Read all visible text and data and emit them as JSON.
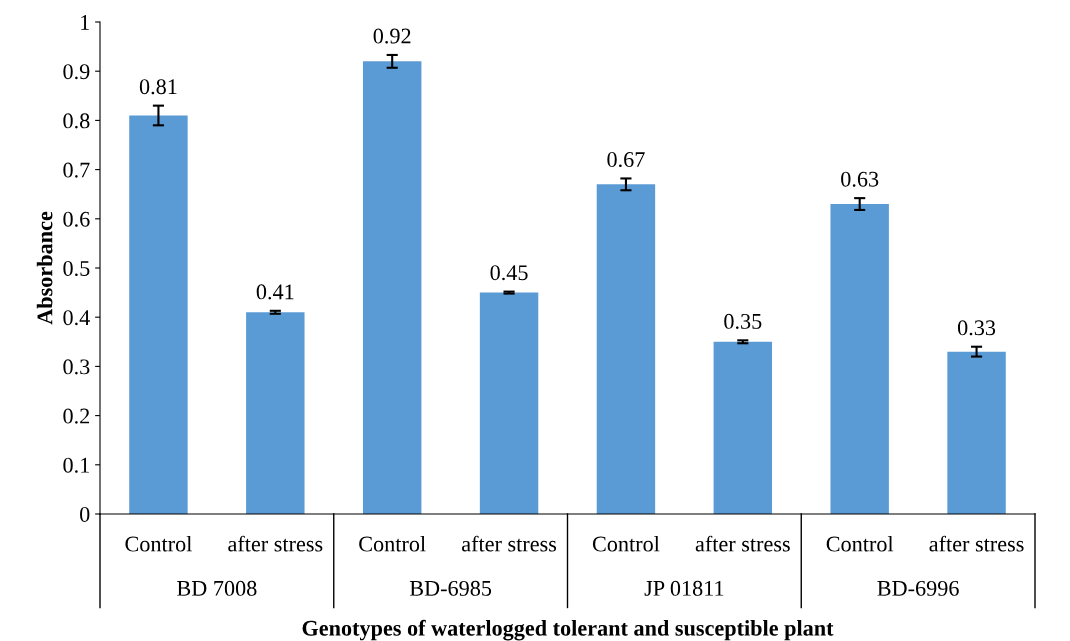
{
  "chart_data": {
    "type": "bar",
    "categories": [
      "Control",
      "after stress",
      "Control",
      "after stress",
      "Control",
      "after stress",
      "Control",
      "after stress"
    ],
    "values": [
      0.81,
      0.41,
      0.92,
      0.45,
      0.67,
      0.35,
      0.63,
      0.33
    ],
    "errors": [
      0.02,
      0.003,
      0.013,
      0.002,
      0.012,
      0.003,
      0.012,
      0.01
    ],
    "color": "#5b9bd5",
    "data_labels": true,
    "annotations": [
      "BD 7008",
      "BD-6985",
      "JP 01811",
      "BD-6996"
    ],
    "xlabel": "Genotypes of waterlogged tolerant and susceptible plant",
    "ylabel": "Absorbance",
    "ylim": [
      0,
      1
    ],
    "yticks": [
      0,
      0.1,
      0.2,
      0.3,
      0.4,
      0.5,
      0.6,
      0.7,
      0.8,
      0.9,
      1
    ],
    "grid": false,
    "legend": false
  }
}
